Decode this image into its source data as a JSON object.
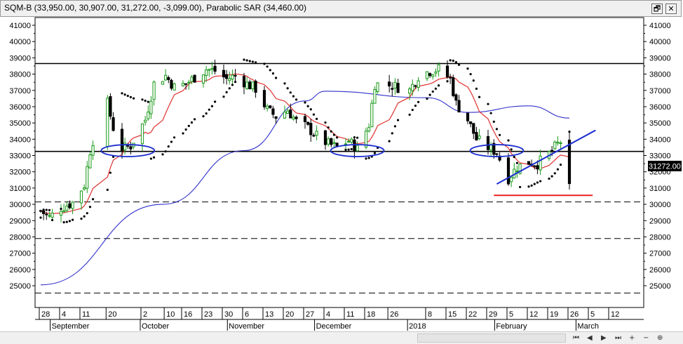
{
  "window": {
    "title": "SQM-B (33,950.00, 30,907.00, 31,272.00, -3,099.00), Parabolic SAR (34,460.00)",
    "restore_label": "🗗",
    "close_label": "✕"
  },
  "colors": {
    "candle_up": "#1a9a1a",
    "candle_down": "#000000",
    "ma_short": "#e03030",
    "ma_long": "#3030cc",
    "sar": "#000000",
    "annotation_blue": "#1d2fd0",
    "support_red": "#e82020",
    "last_price_bg": "#000000"
  },
  "last_price_label": "31272.00",
  "chart_data": {
    "type": "candlestick",
    "series": [
      {
        "name": "SQM-B"
      },
      {
        "name": "Parabolic SAR"
      }
    ],
    "ylim": [
      24000,
      41500
    ],
    "y_ticks": [
      25000,
      26000,
      27000,
      28000,
      29000,
      30000,
      31000,
      32000,
      33000,
      34000,
      35000,
      36000,
      37000,
      38000,
      39000,
      40000,
      41000
    ],
    "day_ticks": [
      "28",
      "4",
      "11",
      "20",
      "2",
      "10",
      "16",
      "23",
      "30",
      "6",
      "13",
      "20",
      "27",
      "4",
      "11",
      "18",
      "26",
      "8",
      "15",
      "22",
      "29",
      "5",
      "12",
      "19",
      "26",
      "5",
      "12"
    ],
    "month_labels": [
      "September",
      "October",
      "November",
      "December",
      "2018",
      "February",
      "March"
    ],
    "date_range": [
      "2017-08-28",
      "2018-03-12"
    ],
    "horizontal_lines": [
      {
        "value": 38650,
        "style": "solid"
      },
      {
        "value": 33250,
        "style": "solid"
      },
      {
        "value": 30150,
        "style": "dashed"
      },
      {
        "value": 27900,
        "style": "dashed"
      },
      {
        "value": 24550,
        "style": "dashed"
      }
    ],
    "last_close": 31272,
    "last_bar": {
      "open": 33950,
      "high": 34460,
      "low": 30907,
      "close": 31272,
      "change": -3099
    },
    "sar_last": 34460,
    "red_support_level": 30550,
    "ma_long_path": [
      {
        "date": "2017-08-28",
        "value": 25050
      },
      {
        "date": "2017-10-09",
        "value": 30000
      },
      {
        "date": "2017-11-06",
        "value": 33300
      },
      {
        "date": "2017-11-27",
        "value": 36350
      },
      {
        "date": "2017-12-04",
        "value": 36950
      },
      {
        "date": "2018-01-08",
        "value": 36550
      },
      {
        "date": "2018-01-22",
        "value": 35650
      },
      {
        "date": "2018-02-12",
        "value": 36050
      },
      {
        "date": "2018-02-26",
        "value": 35300
      }
    ],
    "trendline": [
      {
        "date": "2018-02-01",
        "value": 31250
      },
      {
        "date": "2018-03-07",
        "value": 34550
      }
    ],
    "ellipses": [
      {
        "center_date": "2017-09-27",
        "value": 33300
      },
      {
        "center_date": "2017-12-15",
        "value": 33300
      },
      {
        "center_date": "2018-02-01",
        "value": 33300
      }
    ]
  }
}
